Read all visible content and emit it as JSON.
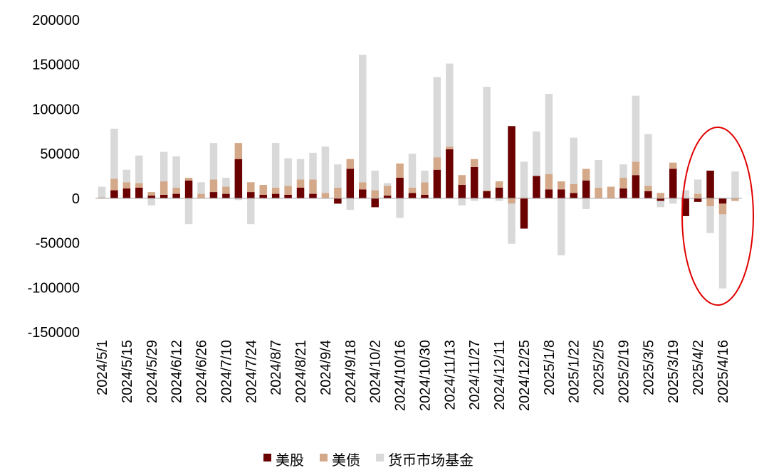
{
  "chart_data": {
    "type": "bar",
    "stacked": true,
    "categories": [
      "2024/5/1",
      null,
      "2024/5/15",
      null,
      "2024/5/29",
      null,
      "2024/6/12",
      null,
      "2024/6/26",
      null,
      "2024/7/10",
      null,
      "2024/7/24",
      null,
      "2024/8/7",
      null,
      "2024/8/21",
      null,
      "2024/9/4",
      null,
      "2024/9/18",
      null,
      "2024/10/2",
      null,
      "2024/10/16",
      null,
      "2024/10/30",
      null,
      "2024/11/13",
      null,
      "2024/11/27",
      null,
      "2024/12/11",
      null,
      "2024/12/25",
      null,
      "2025/1/8",
      null,
      "2025/1/22",
      null,
      "2025/2/5",
      null,
      "2025/2/19",
      null,
      "2025/3/5",
      null,
      "2025/3/19",
      null,
      "2025/4/2",
      null,
      "2025/4/16",
      null
    ],
    "series": [
      {
        "name": "美股",
        "color": "#6b0000",
        "values": [
          0,
          9000,
          11000,
          12000,
          3000,
          4000,
          5000,
          20000,
          0,
          7000,
          5000,
          44000,
          7000,
          4000,
          5000,
          4000,
          12000,
          5000,
          0,
          -6000,
          33000,
          10000,
          -10000,
          3000,
          23000,
          6000,
          4000,
          32000,
          55000,
          15000,
          35000,
          8000,
          12000,
          81000,
          -34000,
          25000,
          10000,
          10000,
          6000,
          20000,
          0,
          0,
          11000,
          26000,
          8000,
          -3000,
          33000,
          -20000,
          -4000,
          31000,
          -6000,
          0
        ]
      },
      {
        "name": "美债",
        "color": "#d4a98a",
        "values": [
          1000,
          13000,
          7000,
          5000,
          4000,
          15000,
          7000,
          3000,
          5000,
          14000,
          8000,
          18000,
          11000,
          11000,
          7000,
          10000,
          9000,
          16000,
          6000,
          12000,
          11000,
          8000,
          9000,
          11000,
          16000,
          6000,
          14000,
          14000,
          3000,
          11000,
          9000,
          1000,
          7000,
          -6000,
          1000,
          0,
          17000,
          9000,
          10000,
          13000,
          12000,
          13000,
          12000,
          15000,
          6000,
          6000,
          7000,
          0,
          5000,
          -9000,
          -12000,
          -3000
        ]
      },
      {
        "name": "货币市场基金",
        "color": "#d9d9d9",
        "values": [
          12000,
          56000,
          14000,
          31000,
          -8000,
          33000,
          35000,
          -29000,
          13000,
          41000,
          10000,
          -2000,
          -29000,
          0,
          50000,
          31000,
          23000,
          30000,
          52000,
          26000,
          -13000,
          143000,
          22000,
          3000,
          -22000,
          38000,
          13000,
          90000,
          93000,
          -8000,
          -3000,
          116000,
          -3000,
          -45000,
          40000,
          50000,
          90000,
          -64000,
          52000,
          -12000,
          31000,
          0,
          15000,
          74000,
          58000,
          -7000,
          -6000,
          9000,
          16000,
          -30000,
          -83000,
          30000
        ]
      }
    ],
    "ylim": [
      -150000,
      200000
    ],
    "yticks": [
      -150000,
      -100000,
      -50000,
      0,
      50000,
      100000,
      150000,
      200000
    ],
    "grid": false
  }
}
